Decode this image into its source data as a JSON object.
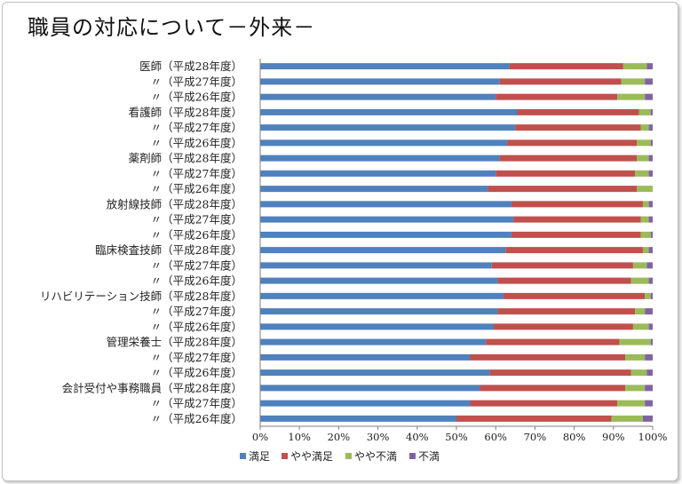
{
  "title": "職員の対応について－外来－",
  "chart_data": {
    "type": "bar",
    "orientation": "horizontal",
    "stacked": "percent",
    "categories": [
      "医師（平成28年度）",
      "〃（平成27年度）",
      "〃（平成26年度）",
      "看護師（平成28年度）",
      "〃（平成27年度）",
      "〃（平成26年度）",
      "薬剤師（平成28年度）",
      "〃（平成27年度）",
      "〃（平成26年度）",
      "放射線技師（平成28年度）",
      "〃（平成27年度）",
      "〃（平成26年度）",
      "臨床検査技師（平成28年度）",
      "〃（平成27年度）",
      "〃（平成26年度）",
      "リハビリテーション技師（平成28年度）",
      "〃（平成27年度）",
      "〃（平成26年度）",
      "管理栄養士（平成28年度）",
      "〃（平成27年度）",
      "〃（平成26年度）",
      "会計受付や事務職員（平成28年度）",
      "〃（平成27年度）",
      "〃（平成26年度）"
    ],
    "series": [
      {
        "name": "満足",
        "color": "#4f81bd",
        "values": [
          63.5,
          61,
          60,
          65.5,
          65,
          63,
          61,
          60,
          58,
          64,
          64.5,
          64,
          62.5,
          59,
          60.5,
          62,
          60.5,
          59.5,
          57.5,
          53.5,
          58.5,
          56,
          53.5,
          50
        ]
      },
      {
        "name": "やや満足",
        "color": "#c0504d",
        "values": [
          29,
          31,
          31,
          31,
          32,
          33,
          35,
          35.5,
          38,
          33.5,
          32.5,
          33,
          35,
          36,
          34,
          36,
          35,
          35.5,
          34,
          39.5,
          36,
          37,
          37.5,
          39.5
        ]
      },
      {
        "name": "やや不満",
        "color": "#9bbb59",
        "values": [
          6,
          6,
          7,
          3,
          2,
          3.5,
          3,
          3.5,
          4,
          1.5,
          2,
          2.5,
          1.5,
          3.5,
          4.5,
          1.5,
          2.5,
          4,
          8,
          5,
          4,
          5,
          7,
          8
        ]
      },
      {
        "name": "不満",
        "color": "#8064a2",
        "values": [
          1.5,
          2,
          2,
          0.5,
          1,
          0.5,
          1,
          1,
          0,
          1,
          1,
          0.5,
          1,
          1.5,
          1,
          0.5,
          2,
          1,
          0.5,
          2,
          1.5,
          2,
          2,
          2.5
        ]
      }
    ],
    "xticks": [
      "0%",
      "10%",
      "20%",
      "30%",
      "40%",
      "50%",
      "60%",
      "70%",
      "80%",
      "90%",
      "100%"
    ],
    "xlim": [
      0,
      100
    ],
    "grid": false,
    "legend_position": "bottom"
  }
}
